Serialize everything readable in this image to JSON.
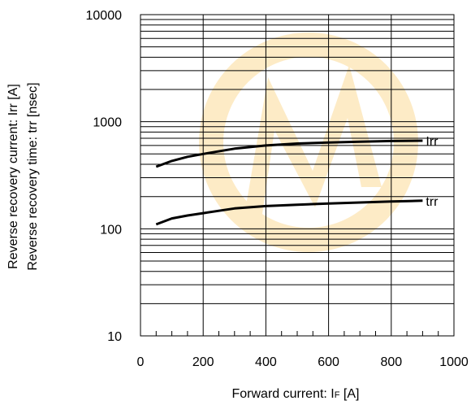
{
  "chart_data": {
    "type": "line",
    "title": "",
    "xlabel": "Forward current: I",
    "xlabel_subscript": "F",
    "xlabel_unit": " [A]",
    "ylabel_lines": [
      "Reverse recovery current: Irr [A]",
      "Reverse recovery time: trr [nsec]"
    ],
    "xlim": [
      0,
      1000
    ],
    "ylim": [
      10,
      10000
    ],
    "yscale": "log",
    "grid": true,
    "x_ticks": [
      0,
      200,
      400,
      600,
      800,
      1000
    ],
    "y_ticks": [
      10,
      100,
      1000,
      10000
    ],
    "x_tick_labels": [
      "0",
      "200",
      "400",
      "600",
      "800",
      "1000"
    ],
    "y_tick_labels": [
      "10",
      "100",
      "1000",
      "10000"
    ],
    "series": [
      {
        "name": "Irr",
        "x": [
          50,
          100,
          150,
          200,
          300,
          400,
          500,
          600,
          700,
          800,
          900
        ],
        "y": [
          380,
          430,
          470,
          500,
          560,
          600,
          625,
          640,
          650,
          660,
          665
        ]
      },
      {
        "name": "trr",
        "x": [
          50,
          100,
          150,
          200,
          300,
          400,
          500,
          600,
          700,
          800,
          900
        ],
        "y": [
          110,
          125,
          133,
          140,
          155,
          163,
          168,
          172,
          176,
          180,
          183
        ]
      }
    ]
  }
}
